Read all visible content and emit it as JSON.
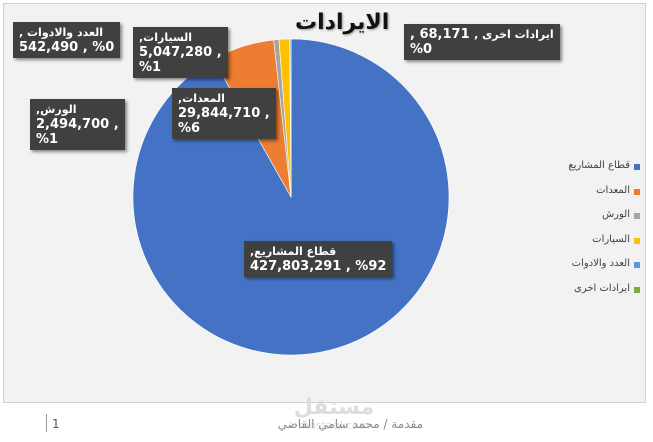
{
  "chart_data": {
    "type": "pie",
    "title": "الايرادات",
    "series": [
      {
        "name": "قطاع المشاريع",
        "value": 427803291,
        "label_name": "قطاع المشاريع,",
        "label_value": "%92 , 427,803,291",
        "color": "#4472c4"
      },
      {
        "name": "المعدات",
        "value": 29844710,
        "label_name": "المعدات,",
        "label_value": ", 29,844,710",
        "label_pct": "%6",
        "color": "#ed7d31"
      },
      {
        "name": "الورش",
        "value": 2494700,
        "label_name": "الورش,",
        "label_value": ", 2,494,700",
        "label_pct": "%1",
        "color": "#a5a5a5"
      },
      {
        "name": "السيارات",
        "value": 5047280,
        "label_name": "السيارات,",
        "label_value": ", 5,047,280",
        "label_pct": "%1",
        "color": "#ffc000"
      },
      {
        "name": "العدد والادوات",
        "value": 542490,
        "label_name": "العدد والادوات ,",
        "label_value": "%0 , 542,490",
        "color": "#5b9bd5"
      },
      {
        "name": "ايرادات اخرى",
        "value": 68171,
        "label_name": "ايرادات اخرى ,",
        "label_value": "68,171 ,",
        "label_pct": "%0",
        "color": "#70ad47"
      }
    ],
    "legend_position": "right"
  },
  "footer": {
    "text": "مقدمة / محمد سامي القاضي",
    "page": "1"
  },
  "watermark": {
    "text": "مستقل",
    "url": "mostaql.com"
  }
}
